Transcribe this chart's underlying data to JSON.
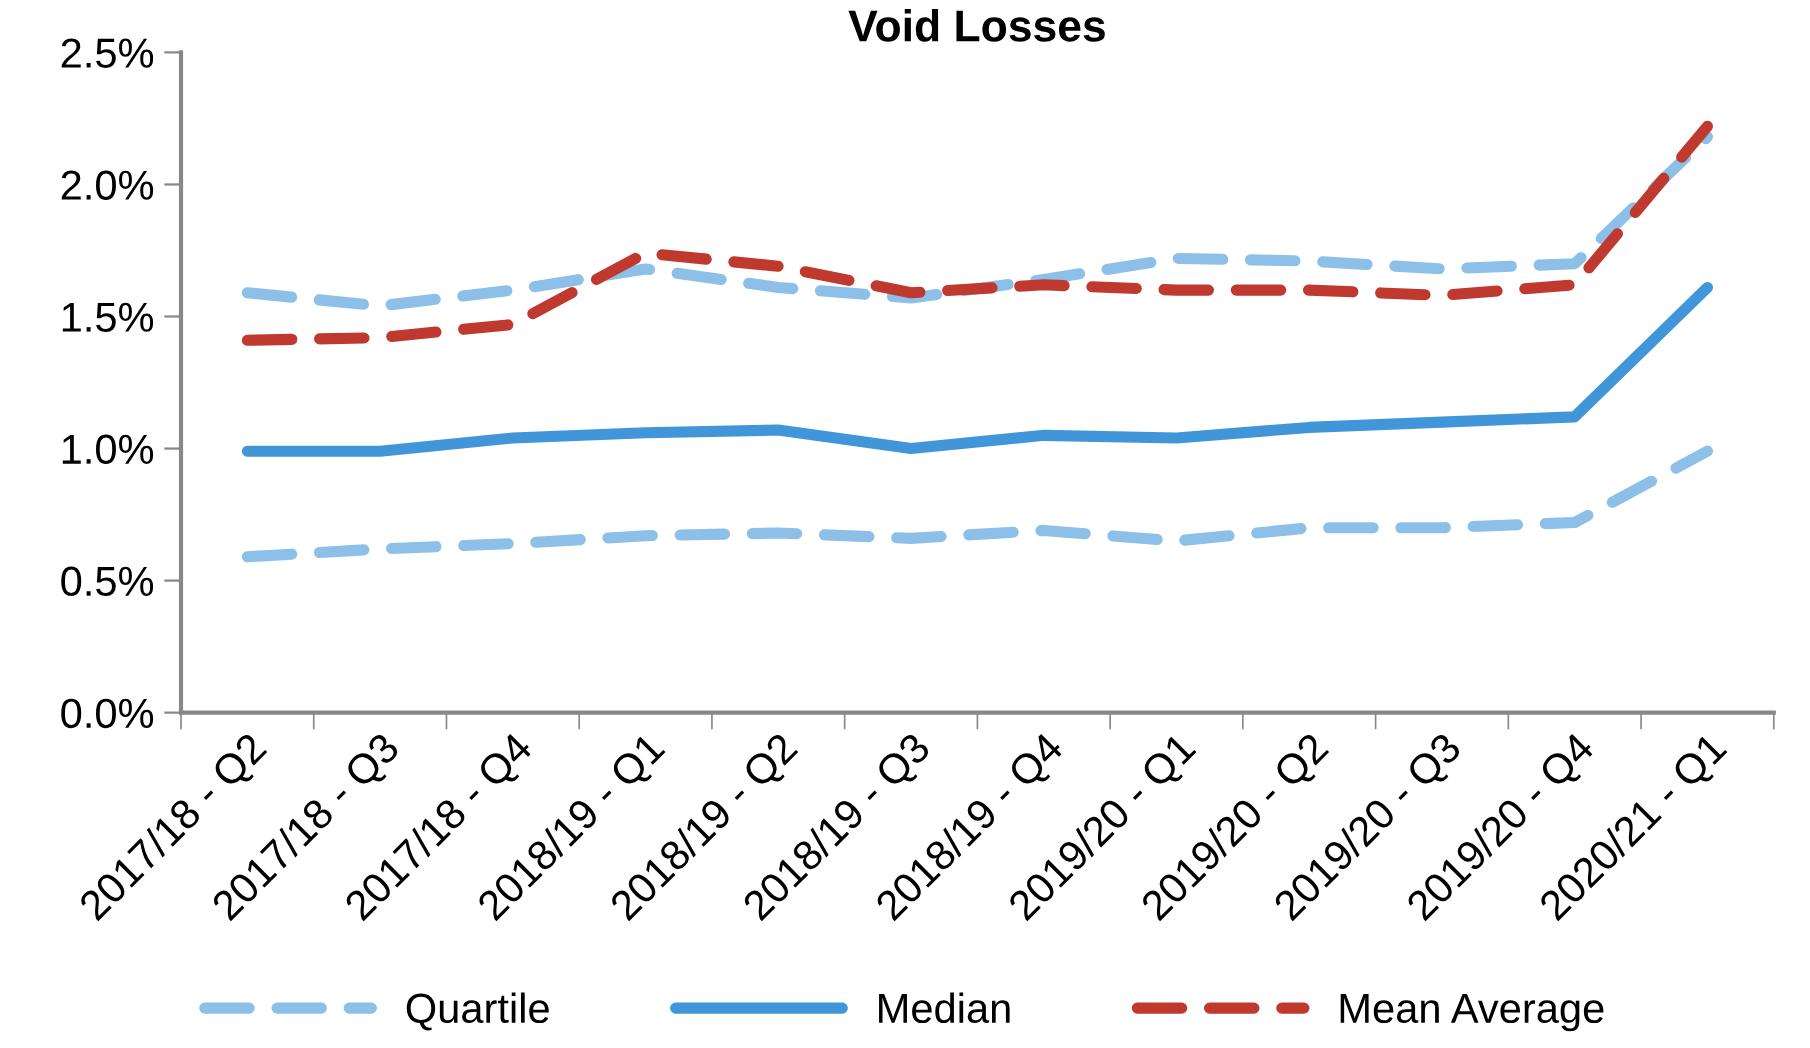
{
  "chart_data": {
    "type": "line",
    "title": "Void Losses",
    "categories": [
      "2017/18 - Q2",
      "2017/18 - Q3",
      "2017/18 - Q4",
      "2018/19 - Q1",
      "2018/19 - Q2",
      "2018/19 - Q3",
      "2018/19 - Q4",
      "2019/20 - Q1",
      "2019/20 - Q2",
      "2019/20 - Q3",
      "2019/20 - Q4",
      "2020/21 - Q1"
    ],
    "series": [
      {
        "name": "Quartile",
        "color": "#8dc0e8",
        "line_style": "dashed",
        "values": [
          1.59,
          1.54,
          1.6,
          1.68,
          1.61,
          1.57,
          1.64,
          1.72,
          1.71,
          1.68,
          1.7,
          2.18
        ]
      },
      {
        "color": "#8dc0e8",
        "line_style": "dashed",
        "values": [
          0.59,
          0.62,
          0.64,
          0.67,
          0.68,
          0.66,
          0.69,
          0.65,
          0.7,
          0.7,
          0.72,
          0.99
        ]
      },
      {
        "name": "Median",
        "color": "#4096d9",
        "line_style": "solid",
        "values": [
          0.99,
          0.99,
          1.04,
          1.06,
          1.07,
          1.0,
          1.05,
          1.04,
          1.08,
          1.1,
          1.12,
          1.61
        ]
      },
      {
        "name": "Mean Average",
        "color": "#c0392f",
        "line_style": "dashed",
        "values": [
          1.41,
          1.42,
          1.47,
          1.74,
          1.69,
          1.59,
          1.62,
          1.6,
          1.6,
          1.58,
          1.62,
          2.22
        ]
      }
    ],
    "ylim": [
      0,
      2.5
    ],
    "yticks": [
      {
        "value": 0,
        "label": "0.0%"
      },
      {
        "value": 0.5,
        "label": "0.5%"
      },
      {
        "value": 1.0,
        "label": "1.0%"
      },
      {
        "value": 1.5,
        "label": "1.5%"
      },
      {
        "value": 2.0,
        "label": "2.0%"
      },
      {
        "value": 2.5,
        "label": "2.5%"
      }
    ],
    "grid": false,
    "legend": "bottom",
    "marker": "none"
  }
}
